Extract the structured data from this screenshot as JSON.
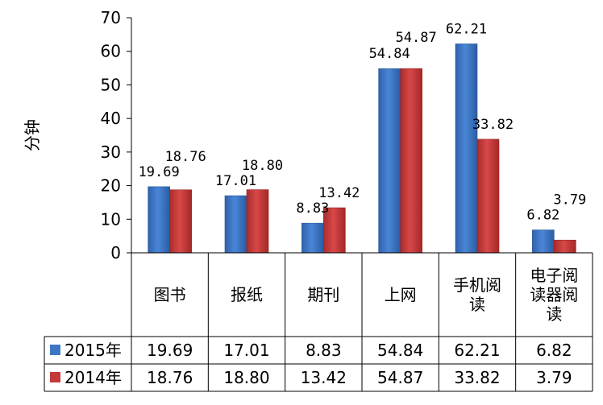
{
  "chart_data": {
    "type": "bar",
    "ylabel": "分钟",
    "ylim": [
      0,
      70
    ],
    "yticks": [
      0,
      10,
      20,
      30,
      40,
      50,
      60,
      70
    ],
    "grid": false,
    "legend": "data-table",
    "categories": [
      [
        "图书"
      ],
      [
        "报纸"
      ],
      [
        "期刊"
      ],
      [
        "上网"
      ],
      [
        "手机阅",
        "读"
      ],
      [
        "电子阅",
        "读器阅",
        "读"
      ]
    ],
    "series": [
      {
        "name": "2015年",
        "color": "#3f76c3",
        "values": [
          19.69,
          17.01,
          8.83,
          54.84,
          62.21,
          6.82
        ],
        "labels": [
          "19.69",
          "17.01",
          "8.83",
          "54.84",
          "62.21",
          "6.82"
        ],
        "table": [
          "19.69",
          "17.01",
          "8.83",
          "54.84",
          "62.21",
          "6.82"
        ]
      },
      {
        "name": "2014年",
        "color": "#c43a3a",
        "values": [
          18.76,
          18.8,
          13.42,
          54.87,
          33.82,
          3.79
        ],
        "labels": [
          "18.76",
          "18.80",
          "13.42",
          "54.87",
          "33.82",
          "3.79"
        ],
        "table": [
          "18.76",
          "18.80",
          "13.42",
          "54.87",
          "33.82",
          "3.79"
        ]
      }
    ]
  }
}
